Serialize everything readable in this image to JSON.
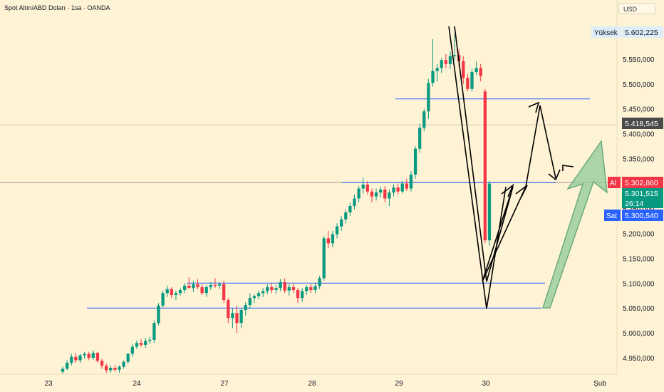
{
  "header": {
    "title": "Spot Altın/ABD Doları · 1sa · OANDA",
    "currency": "USD"
  },
  "colors": {
    "up": "#089981",
    "down": "#f23645",
    "level": "#2962ff",
    "arrow": "#000000",
    "big_arrow": "#6aab7c",
    "bg": "#fff3d6"
  },
  "chart_data": {
    "type": "candlestick",
    "title": "Spot Altın/ABD Doları · 1sa · OANDA",
    "x_labels": [
      "23",
      "24",
      "27",
      "28",
      "29",
      "30",
      "Şub"
    ],
    "y_ticks": [
      "4.950,000",
      "5.000,000",
      "5.050,000",
      "5.100,000",
      "5.150,000",
      "5.200,000",
      "5.250,000",
      "5.300,000",
      "5.350,000",
      "5.400,000",
      "5.450,000",
      "5.500,000",
      "5.550,000"
    ],
    "ylim": [
      4910,
      5640
    ],
    "price_labels": {
      "high_label": "Yüksek",
      "high_value": "5.602,225",
      "crosshair_value": "5.418,545",
      "ask_label": "Al",
      "ask_value": "5.302,860",
      "last_value": "5.301,515",
      "countdown": "26:14",
      "bid_label": "Sat",
      "bid_value": "5.300,540"
    },
    "levels": [
      5470,
      5302,
      5100,
      5050
    ],
    "ohlc_series": [
      [
        4922,
        4932,
        4918,
        4928
      ],
      [
        4928,
        4945,
        4925,
        4940
      ],
      [
        4940,
        4958,
        4935,
        4952
      ],
      [
        4952,
        4960,
        4940,
        4945
      ],
      [
        4945,
        4958,
        4940,
        4955
      ],
      [
        4955,
        4962,
        4948,
        4958
      ],
      [
        4958,
        4962,
        4945,
        4950
      ],
      [
        4950,
        4965,
        4946,
        4960
      ],
      [
        4960,
        4962,
        4940,
        4944
      ],
      [
        4944,
        4948,
        4928,
        4934
      ],
      [
        4934,
        4938,
        4920,
        4925
      ],
      [
        4925,
        4935,
        4920,
        4930
      ],
      [
        4930,
        4936,
        4922,
        4926
      ],
      [
        4926,
        4935,
        4920,
        4932
      ],
      [
        4932,
        4945,
        4928,
        4942
      ],
      [
        4942,
        4960,
        4938,
        4958
      ],
      [
        4958,
        4978,
        4952,
        4972
      ],
      [
        4972,
        4985,
        4968,
        4980
      ],
      [
        4980,
        4988,
        4972,
        4976
      ],
      [
        4976,
        4990,
        4970,
        4984
      ],
      [
        4984,
        4992,
        4978,
        4986
      ],
      [
        4986,
        5025,
        4980,
        5020
      ],
      [
        5020,
        5060,
        5015,
        5055
      ],
      [
        5055,
        5085,
        5050,
        5080
      ],
      [
        5080,
        5095,
        5072,
        5088
      ],
      [
        5088,
        5092,
        5070,
        5076
      ],
      [
        5076,
        5085,
        5066,
        5080
      ],
      [
        5080,
        5090,
        5075,
        5086
      ],
      [
        5086,
        5100,
        5080,
        5095
      ],
      [
        5095,
        5112,
        5090,
        5090
      ],
      [
        5090,
        5105,
        5082,
        5098
      ],
      [
        5098,
        5108,
        5088,
        5092
      ],
      [
        5092,
        5098,
        5076,
        5080
      ],
      [
        5080,
        5096,
        5072,
        5092
      ],
      [
        5092,
        5102,
        5086,
        5096
      ],
      [
        5096,
        5110,
        5090,
        5095
      ],
      [
        5095,
        5102,
        5088,
        5098
      ],
      [
        5098,
        5105,
        5060,
        5066
      ],
      [
        5066,
        5070,
        5020,
        5030
      ],
      [
        5030,
        5050,
        5010,
        5040
      ],
      [
        5040,
        5055,
        5000,
        5020
      ],
      [
        5020,
        5050,
        5010,
        5046
      ],
      [
        5046,
        5062,
        5035,
        5056
      ],
      [
        5056,
        5080,
        5048,
        5070
      ],
      [
        5070,
        5078,
        5060,
        5074
      ],
      [
        5074,
        5085,
        5068,
        5080
      ],
      [
        5080,
        5090,
        5072,
        5084
      ],
      [
        5084,
        5098,
        5078,
        5092
      ],
      [
        5092,
        5100,
        5080,
        5086
      ],
      [
        5086,
        5096,
        5078,
        5090
      ],
      [
        5090,
        5108,
        5084,
        5102
      ],
      [
        5102,
        5110,
        5080,
        5085
      ],
      [
        5085,
        5098,
        5075,
        5092
      ],
      [
        5092,
        5100,
        5080,
        5086
      ],
      [
        5086,
        5090,
        5060,
        5070
      ],
      [
        5070,
        5090,
        5062,
        5084
      ],
      [
        5084,
        5096,
        5076,
        5092
      ],
      [
        5092,
        5098,
        5080,
        5086
      ],
      [
        5086,
        5100,
        5080,
        5094
      ],
      [
        5094,
        5115,
        5088,
        5110
      ],
      [
        5110,
        5195,
        5105,
        5190
      ],
      [
        5190,
        5205,
        5170,
        5180
      ],
      [
        5180,
        5205,
        5172,
        5198
      ],
      [
        5198,
        5220,
        5190,
        5214
      ],
      [
        5214,
        5235,
        5205,
        5228
      ],
      [
        5228,
        5248,
        5220,
        5242
      ],
      [
        5242,
        5262,
        5235,
        5255
      ],
      [
        5255,
        5278,
        5248,
        5270
      ],
      [
        5270,
        5295,
        5262,
        5290
      ],
      [
        5290,
        5312,
        5280,
        5298
      ],
      [
        5298,
        5305,
        5278,
        5284
      ],
      [
        5284,
        5290,
        5262,
        5274
      ],
      [
        5274,
        5290,
        5266,
        5282
      ],
      [
        5282,
        5294,
        5272,
        5288
      ],
      [
        5288,
        5295,
        5262,
        5270
      ],
      [
        5270,
        5288,
        5255,
        5282
      ],
      [
        5282,
        5298,
        5274,
        5292
      ],
      [
        5292,
        5300,
        5278,
        5284
      ],
      [
        5284,
        5305,
        5280,
        5300
      ],
      [
        5300,
        5310,
        5285,
        5290
      ],
      [
        5290,
        5325,
        5284,
        5318
      ],
      [
        5318,
        5375,
        5310,
        5370
      ],
      [
        5370,
        5420,
        5362,
        5412
      ],
      [
        5412,
        5450,
        5405,
        5445
      ],
      [
        5445,
        5510,
        5430,
        5502
      ],
      [
        5502,
        5590,
        5495,
        5526
      ],
      [
        5526,
        5540,
        5505,
        5532
      ],
      [
        5532,
        5552,
        5522,
        5548
      ],
      [
        5548,
        5560,
        5532,
        5540
      ],
      [
        5540,
        5565,
        5530,
        5556
      ],
      [
        5556,
        5600,
        5548,
        5558
      ],
      [
        5558,
        5570,
        5535,
        5546
      ],
      [
        5546,
        5556,
        5500,
        5512
      ],
      [
        5512,
        5520,
        5485,
        5490
      ],
      [
        5490,
        5530,
        5485,
        5524
      ],
      [
        5524,
        5545,
        5518,
        5532
      ],
      [
        5532,
        5540,
        5505,
        5516
      ],
      [
        5485,
        5490,
        5180,
        5186
      ],
      [
        5186,
        5305,
        5175,
        5300
      ]
    ],
    "drawings": {
      "zigzag": [
        [
          638,
          37
        ],
        [
          683,
          395
        ],
        [
          720,
          262
        ],
        [
          677,
          395
        ],
        [
          738,
          262
        ],
        [
          758,
          148
        ],
        [
          780,
          250
        ]
      ],
      "cross": [
        [
          630,
          37
        ],
        [
          683,
          433
        ]
      ],
      "short_arrow": [
        [
          683,
          433
        ],
        [
          710,
          262
        ]
      ],
      "big_arrow_from": [
        762,
        432
      ],
      "big_arrow_to": [
        842,
        198
      ]
    }
  }
}
